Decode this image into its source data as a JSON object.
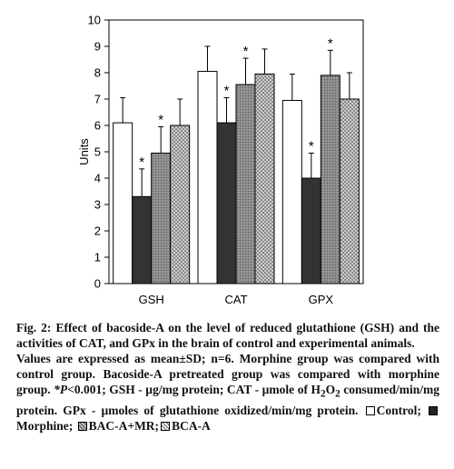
{
  "chart_data": {
    "type": "bar",
    "ylabel": "Units",
    "ylim": [
      0,
      10
    ],
    "yticks": [
      0,
      1,
      2,
      3,
      4,
      5,
      6,
      7,
      8,
      9,
      10
    ],
    "categories": [
      "GSH",
      "CAT",
      "GPX"
    ],
    "series": [
      {
        "name": "Control",
        "fill": "#ffffff",
        "pattern": "none",
        "values": [
          6.1,
          8.05,
          6.95
        ],
        "sd": [
          0.95,
          0.95,
          1.0
        ],
        "sig": [
          false,
          false,
          false
        ]
      },
      {
        "name": "Morphine",
        "fill": "#333333",
        "pattern": "solid",
        "values": [
          3.3,
          6.1,
          4.0
        ],
        "sd": [
          1.05,
          0.95,
          0.95
        ],
        "sig": [
          true,
          true,
          true
        ]
      },
      {
        "name": "BAC-A+MR",
        "fill": "#999999",
        "pattern": "fine-dots",
        "values": [
          4.95,
          7.55,
          7.9
        ],
        "sd": [
          1.0,
          1.0,
          0.95
        ],
        "sig": [
          true,
          true,
          true
        ]
      },
      {
        "name": "BCA-A",
        "fill": "#cccccc",
        "pattern": "crosshatch",
        "values": [
          6.0,
          7.95,
          7.0
        ],
        "sd": [
          1.0,
          0.95,
          1.0
        ],
        "sig": [
          false,
          false,
          false
        ]
      }
    ],
    "significance_marker": "*",
    "grid": false,
    "legend": "in caption"
  },
  "caption": {
    "fig_label": "Fig. 2:",
    "fig_title": "Effect of bacoside-A on the level of reduced glutathione (GSH) and the activities of CAT, and GPx in the brain of control and experimental animals.",
    "body_1": "Values are expressed as mean±SD; n=6. Morphine group was compared with control group. Bacoside-A pretreated group was compared with morphine group. ",
    "p_symbol": "*P",
    "p_value": "<0.001; GSH - µg/mg protein; CAT - µmole of H",
    "h2o_sub": "2",
    "h2o_o": "O",
    "h2o_sub2": "2",
    "body_2": " consumed/min/mg protein. GPx - µmoles of glutathione oxidized/min/mg protein.",
    "legend_control": "Control;",
    "legend_morphine": "Morphine;",
    "legend_bac": "BAC-A+MR;",
    "legend_bca": "BCA-A"
  }
}
